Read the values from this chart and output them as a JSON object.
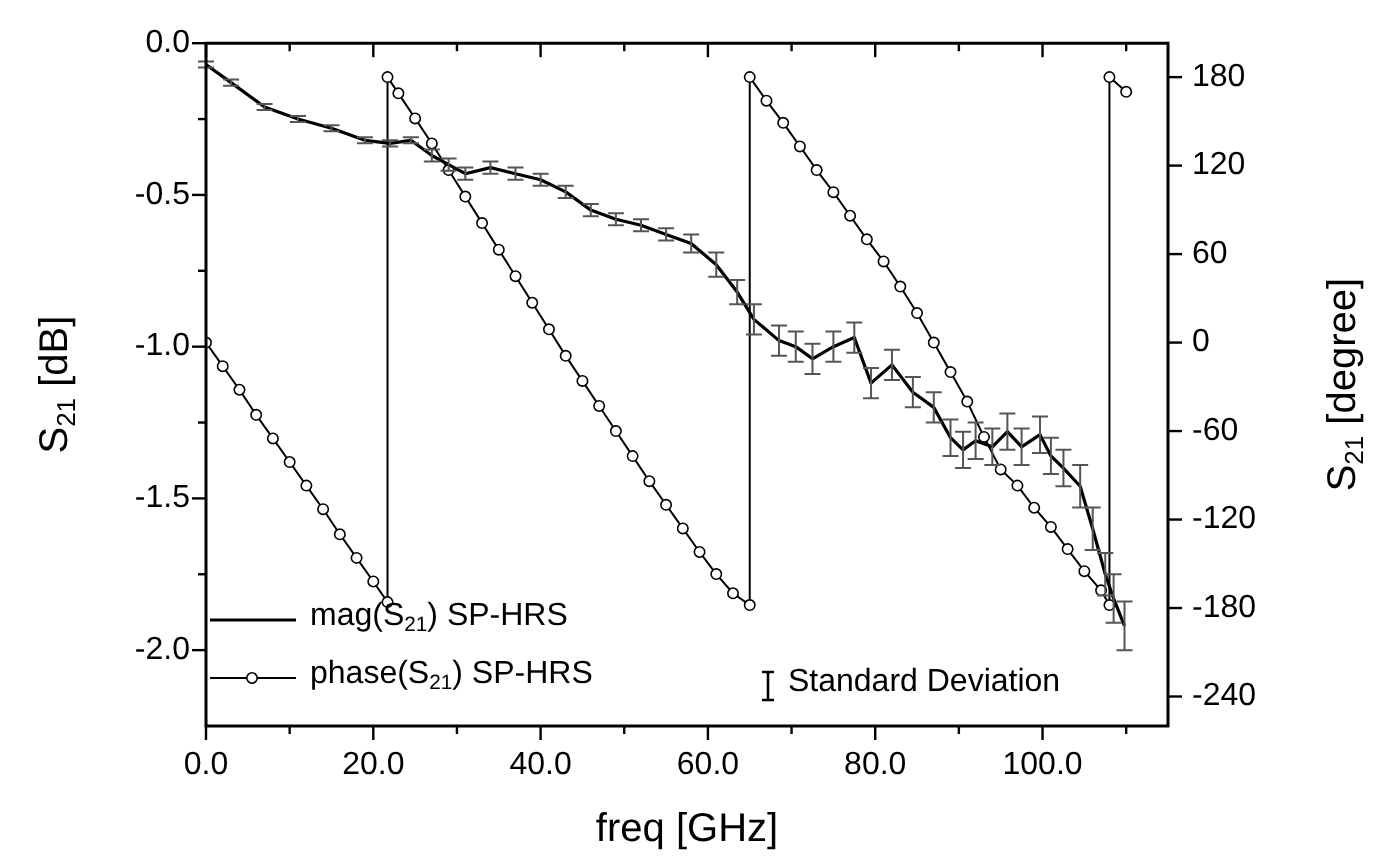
{
  "chart_data": {
    "type": "line",
    "xlabel": "freq [GHz]",
    "ylabel": "S$_{21}$ [dB]",
    "y2label": "S$_{21}$ [degree]",
    "xlim": [
      0,
      115
    ],
    "xticks": [
      {
        "value": 0,
        "label": "0.0"
      },
      {
        "value": 10,
        "label": null
      },
      {
        "value": 20,
        "label": "20.0"
      },
      {
        "value": 30,
        "label": null
      },
      {
        "value": 40,
        "label": "40.0"
      },
      {
        "value": 50,
        "label": null
      },
      {
        "value": 60,
        "label": "60.0"
      },
      {
        "value": 70,
        "label": null
      },
      {
        "value": 80,
        "label": "80.0"
      },
      {
        "value": 90,
        "label": null
      },
      {
        "value": 100,
        "label": "100.0"
      },
      {
        "value": 110,
        "label": null
      }
    ],
    "ylim": [
      -2.25,
      0
    ],
    "yticks": [
      {
        "value": -2,
        "label": "-2.0"
      },
      {
        "value": -1.75,
        "label": null
      },
      {
        "value": -1.5,
        "label": "-1.5"
      },
      {
        "value": -1.25,
        "label": null
      },
      {
        "value": -1,
        "label": "-1.0"
      },
      {
        "value": -0.75,
        "label": null
      },
      {
        "value": -0.5,
        "label": "-0.5"
      },
      {
        "value": -0.25,
        "label": null
      },
      {
        "value": 0,
        "label": "0.0"
      }
    ],
    "y2lim": [
      -260,
      203
    ],
    "y2ticks": [
      -240,
      -180,
      -120,
      -60,
      0,
      60,
      120,
      180
    ],
    "legend": "bottom left",
    "grid": false,
    "annotations": [
      "Standard Deviation"
    ],
    "series": [
      {
        "name": "mag(S$_{21}$) SP-HRS",
        "color": "#000000",
        "marker": "none",
        "x": [
          0,
          3,
          7,
          11,
          15,
          19,
          22,
          24.5,
          27,
          29,
          31,
          34,
          37,
          40,
          43,
          46,
          49,
          52,
          55,
          58,
          61,
          63.5,
          65.5,
          68.5,
          70.5,
          72.5,
          75,
          77.5,
          79.5,
          82,
          84.5,
          87,
          89,
          90.5,
          92,
          94,
          95.8,
          97.5,
          99.7,
          101,
          102.5,
          104.5,
          106,
          107.5,
          108.5,
          109.8
        ],
        "values": [
          -0.07,
          -0.13,
          -0.21,
          -0.25,
          -0.28,
          -0.32,
          -0.33,
          -0.32,
          -0.37,
          -0.4,
          -0.43,
          -0.41,
          -0.43,
          -0.45,
          -0.49,
          -0.55,
          -0.58,
          -0.6,
          -0.63,
          -0.66,
          -0.73,
          -0.82,
          -0.91,
          -0.98,
          -1,
          -1.04,
          -1,
          -0.97,
          -1.12,
          -1.06,
          -1.15,
          -1.2,
          -1.3,
          -1.34,
          -1.31,
          -1.33,
          -1.28,
          -1.33,
          -1.29,
          -1.36,
          -1.4,
          -1.46,
          -1.6,
          -1.75,
          -1.83,
          -1.92
        ],
        "errors": [
          0.01,
          0.01,
          0.01,
          0.01,
          0.01,
          0.01,
          0.01,
          0.01,
          0.02,
          0.02,
          0.02,
          0.02,
          0.02,
          0.02,
          0.02,
          0.02,
          0.02,
          0.02,
          0.02,
          0.03,
          0.04,
          0.04,
          0.05,
          0.05,
          0.05,
          0.05,
          0.05,
          0.05,
          0.05,
          0.05,
          0.05,
          0.05,
          0.06,
          0.06,
          0.06,
          0.06,
          0.06,
          0.06,
          0.06,
          0.06,
          0.06,
          0.07,
          0.07,
          0.07,
          0.08,
          0.08
        ]
      },
      {
        "name": "phase(S$_{21}$) SP-HRS",
        "color": "#000000",
        "marker": "circle",
        "axis": "y2",
        "x": [
          0,
          2,
          4,
          6,
          8,
          10,
          12,
          14,
          16,
          18,
          20,
          21.7,
          21.7,
          23,
          25,
          27,
          29,
          31,
          33,
          35,
          37,
          39,
          41,
          43,
          45,
          47,
          49,
          51,
          53,
          55,
          57,
          59,
          61,
          63,
          65,
          65,
          67,
          69,
          71,
          73,
          75,
          77,
          79,
          81,
          83,
          85,
          87,
          89,
          91,
          93,
          95,
          97,
          99,
          101,
          103,
          105,
          107,
          108,
          108,
          110
        ],
        "values": [
          0,
          -16,
          -32,
          -49,
          -65,
          -81,
          -97,
          -113,
          -130,
          -146,
          -162,
          -176,
          180,
          169,
          152,
          135,
          117,
          99,
          81,
          63,
          45,
          27,
          9,
          -9,
          -26,
          -43,
          -60,
          -77,
          -94,
          -110,
          -126,
          -142,
          -157,
          -170,
          -178,
          180,
          164,
          149,
          133,
          117,
          102,
          86,
          70,
          55,
          38,
          20,
          0,
          -20,
          -40,
          -64,
          -86,
          -97,
          -112,
          -125,
          -140,
          -155,
          -168,
          -178,
          180,
          170
        ]
      }
    ]
  }
}
